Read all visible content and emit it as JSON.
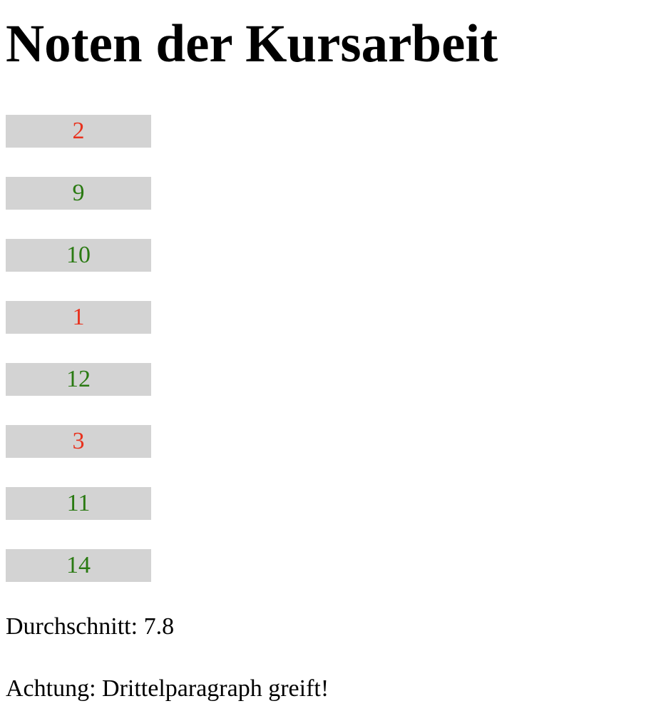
{
  "page": {
    "title": "Noten der Kursarbeit"
  },
  "grades": [
    {
      "value": "2",
      "status": "fail"
    },
    {
      "value": "9",
      "status": "pass"
    },
    {
      "value": "10",
      "status": "pass"
    },
    {
      "value": "1",
      "status": "fail"
    },
    {
      "value": "12",
      "status": "pass"
    },
    {
      "value": "3",
      "status": "fail"
    },
    {
      "value": "11",
      "status": "pass"
    },
    {
      "value": "14",
      "status": "pass"
    }
  ],
  "summary": {
    "average": "Durchschnitt: 7.8",
    "warning": "Achtung: Drittelparagraph greift!"
  },
  "colors": {
    "fail": "#e8321e",
    "pass": "#2a7a12",
    "cell_background": "#d3d3d3"
  }
}
